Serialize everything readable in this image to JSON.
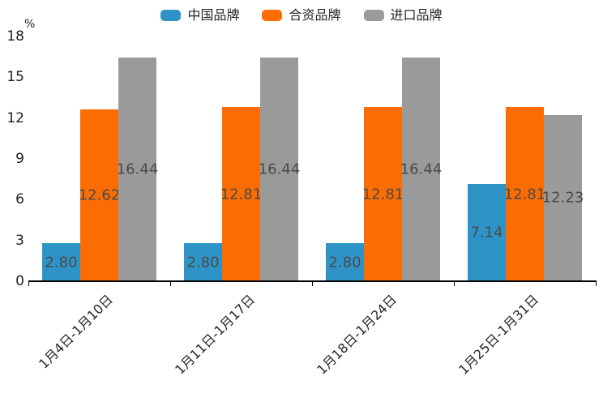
{
  "chart": {
    "unit_label": "%"
  },
  "chart_data": {
    "type": "bar",
    "title": "",
    "xlabel": "",
    "ylabel": "%",
    "categories": [
      "1月4日-1月10日",
      "1月11日-1月17日",
      "1月18日-1月24日",
      "1月25日-1月31日"
    ],
    "series": [
      {
        "name": "中国品牌",
        "color": "#2E94C8",
        "values": [
          2.8,
          2.8,
          2.8,
          7.14
        ],
        "value_labels": [
          "2.80",
          "2.80",
          "2.80",
          "7.14"
        ]
      },
      {
        "name": "合资品牌",
        "color": "#FB6C02",
        "values": [
          12.62,
          12.81,
          12.81,
          12.81
        ],
        "value_labels": [
          "12.62",
          "12.81",
          "12.81",
          "12.81"
        ]
      },
      {
        "name": "进口品牌",
        "color": "#9A9A9A",
        "values": [
          16.44,
          16.44,
          16.44,
          12.23
        ],
        "value_labels": [
          "16.44",
          "16.44",
          "16.44",
          "12.23"
        ]
      }
    ],
    "ylim": [
      0,
      18
    ],
    "yticks": [
      0,
      3,
      6,
      9,
      12,
      15,
      18
    ],
    "grid": false,
    "legend_position": "top-center",
    "value_label_position": "inside-center"
  }
}
